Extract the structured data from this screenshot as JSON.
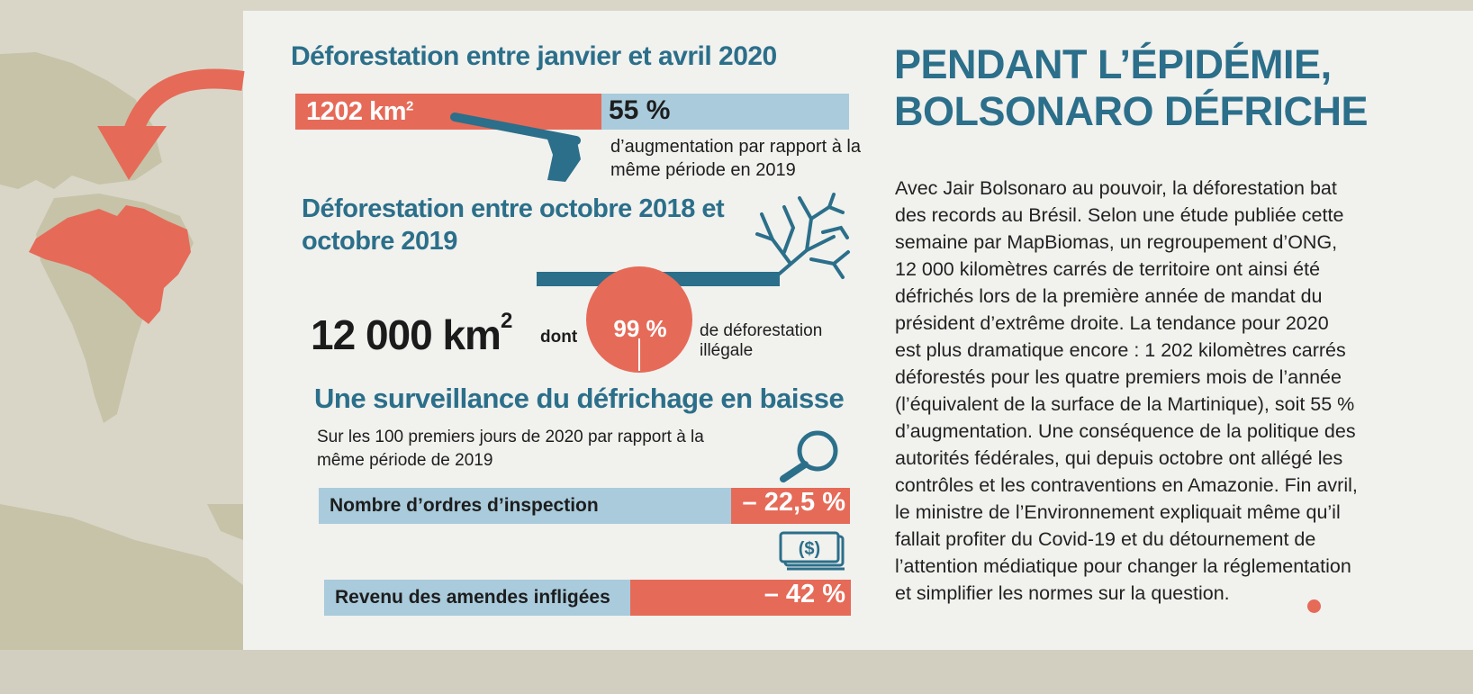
{
  "infographic": {
    "deforestation_2020": {
      "title": "Déforestation entre janvier et avril 2020",
      "area_value": "1202 km",
      "area_unit_exponent": "2",
      "increase_percent": "55 %",
      "increase_description": "d’augmentation par rapport à la même période en 2019"
    },
    "deforestation_2018_2019": {
      "title": "Déforestation entre octobre 2018 et octobre 2019",
      "area_value": "12 000 km",
      "area_unit_exponent": "2",
      "connector": "dont",
      "illegal_percent": "99 %",
      "illegal_description": "de déforestation illégale"
    },
    "surveillance": {
      "title": "Une surveillance du défrichage en baisse",
      "subtitle": "Sur les 100 premiers jours de 2020 par rapport à la même période de 2019",
      "inspection_label": "Nombre d’ordres d’inspection",
      "inspection_change": "– 22,5 %",
      "fines_label": "Revenu des amendes infligées",
      "fines_change": "– 42 %"
    }
  },
  "article": {
    "headline": "PENDANT L’ÉPIDÉMIE, BOLSONARO DÉFRICHE",
    "body": "Avec Jair Bolsonaro au pouvoir, la déforestation bat\ndes records au Brésil. Selon une étude publiée cette\nsemaine par MapBiomas, un regroupement d’ONG,\n12 000 kilomètres carrés de territoire ont ainsi été\ndéfrichés lors de la première année de mandat du\nprésident d’extrême droite. La tendance pour 2020\nest plus dramatique encore : 1 202 kilomètres carrés\ndéforestés pour les quatre premiers mois de l’année\n(l’équivalent de la surface de la Martinique), soit 55 %\nd’augmentation. Une conséquence de la politique des\nautorités fédérales, qui depuis octobre ont allégé les\ncontrôles et les contraventions en Amazonie. Fin avril,\nle ministre de l’Environnement expliquait même qu’il\nfallait profiter du Covid-19 et du détournement de\nl’attention médiatique pour changer la réglementation\net simplifier les normes sur la question."
  },
  "icons": [
    "axe-icon",
    "tree-icon",
    "magnifier-icon",
    "banknotes-icon",
    "brazil-map",
    "curved-arrow-icon"
  ],
  "colors": {
    "accent_red": "#e66a58",
    "accent_blue": "#2b6f8a",
    "bar_blue": "#a9cbdc",
    "paper": "#f1f1ee",
    "map_land": "#c6c3a8"
  }
}
